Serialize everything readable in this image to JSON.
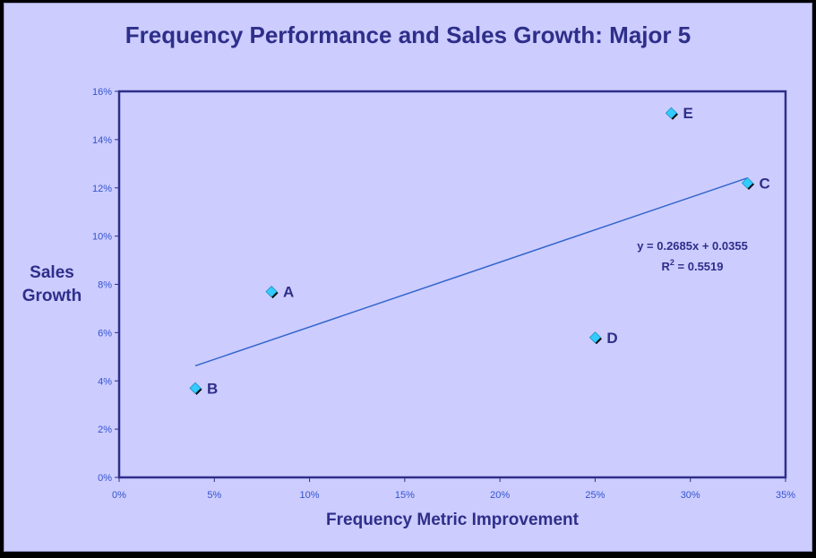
{
  "chart_data": {
    "type": "scatter",
    "title": "Frequency Performance and Sales Growth:  Major 5",
    "xlabel": "Frequency Metric Improvement",
    "ylabel": "Sales Growth",
    "xlim": [
      0,
      0.35
    ],
    "ylim": [
      0,
      0.16
    ],
    "x_ticks": [
      "0%",
      "5%",
      "10%",
      "15%",
      "20%",
      "25%",
      "30%",
      "35%"
    ],
    "y_ticks": [
      "0%",
      "2%",
      "4%",
      "6%",
      "8%",
      "10%",
      "12%",
      "14%",
      "16%"
    ],
    "points": [
      {
        "label": "A",
        "x": 0.08,
        "y": 0.077
      },
      {
        "label": "B",
        "x": 0.04,
        "y": 0.037
      },
      {
        "label": "C",
        "x": 0.33,
        "y": 0.122
      },
      {
        "label": "D",
        "x": 0.25,
        "y": 0.058
      },
      {
        "label": "E",
        "x": 0.29,
        "y": 0.151
      }
    ],
    "trendline": {
      "slope": 0.2685,
      "intercept": 0.0355,
      "x_range": [
        0.04,
        0.33
      ],
      "equation": "y = 0.2685x + 0.0355",
      "r2_prefix": "R",
      "r2_sup": "2",
      "r2_value": " = 0.5519"
    },
    "grid": false,
    "colors": {
      "background": "#ccccff",
      "plot_border": "#2e2e8a",
      "marker": "#33ccff",
      "trendline": "#3366cc",
      "text": "#2e2e8a",
      "ticks": "#3355cc"
    }
  }
}
